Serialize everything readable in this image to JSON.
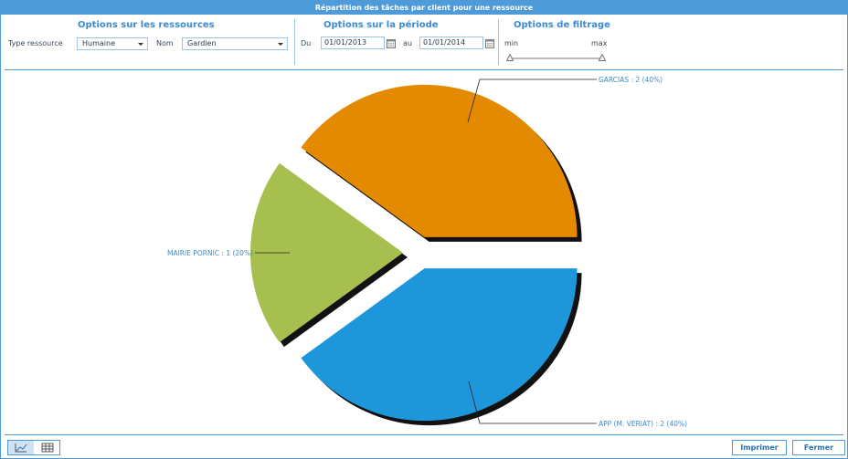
{
  "window": {
    "title": "Répartition des tâches par client pour une ressource"
  },
  "resources": {
    "title": "Options sur les ressources",
    "type_label": "Type ressource",
    "type_value": "Humaine",
    "name_label": "Nom",
    "name_value": "Gardien"
  },
  "period": {
    "title": "Options sur la période",
    "from_label": "Du",
    "from_value": "01/01/2013",
    "to_label": "au",
    "to_value": "01/01/2014"
  },
  "filter": {
    "title": "Options de filtrage",
    "min_label": "min",
    "max_label": "max"
  },
  "chart_data": {
    "type": "pie",
    "slices": [
      {
        "label": "GARCIAS : 2 (40%)",
        "value": 2,
        "percent": 40,
        "color": "#e38a00"
      },
      {
        "label": "APP (M. VERIAT) : 2 (40%)",
        "value": 2,
        "percent": 40,
        "color": "#1e97da"
      },
      {
        "label": "MAIRIE PORNIC : 1 (20%)",
        "value": 1,
        "percent": 20,
        "color": "#a7bf4e"
      }
    ],
    "exploded": true,
    "shadow": true
  },
  "footer": {
    "view_chart_icon": "chart-view-icon",
    "view_table_icon": "table-view-icon",
    "print_label": "Imprimer",
    "close_label": "Fermer"
  },
  "colors": {
    "accent": "#4f9ad8",
    "title_text": "#3b8bd0",
    "label_text": "#3b8bd0"
  }
}
